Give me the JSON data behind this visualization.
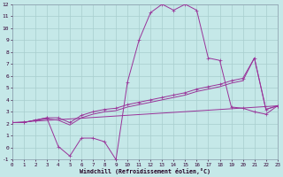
{
  "xlabel": "Windchill (Refroidissement éolien,°C)",
  "background_color": "#c5e8e8",
  "grid_color": "#a8cece",
  "line_color": "#993399",
  "xlim": [
    0,
    23
  ],
  "ylim": [
    -1,
    12
  ],
  "xticks": [
    0,
    1,
    2,
    3,
    4,
    5,
    6,
    7,
    8,
    9,
    10,
    11,
    12,
    13,
    14,
    15,
    16,
    17,
    18,
    19,
    20,
    21,
    22,
    23
  ],
  "yticks": [
    -1,
    0,
    1,
    2,
    3,
    4,
    5,
    6,
    7,
    8,
    9,
    10,
    11,
    12
  ],
  "curve1_x": [
    0,
    1,
    2,
    3,
    4,
    5,
    6,
    7,
    8,
    9,
    10,
    11,
    12,
    13,
    14,
    15,
    16,
    17,
    18,
    19,
    20,
    21,
    22,
    23
  ],
  "curve1_y": [
    2.1,
    2.1,
    2.3,
    2.5,
    0.1,
    -0.7,
    0.8,
    0.8,
    0.5,
    -1.0,
    5.5,
    9.0,
    11.3,
    12.0,
    11.5,
    12.0,
    11.5,
    7.5,
    7.3,
    3.4,
    3.3,
    3.0,
    2.8,
    3.5
  ],
  "curve2_x": [
    0,
    1,
    2,
    3,
    4,
    5,
    6,
    7,
    8,
    9,
    10,
    11,
    12,
    13,
    14,
    15,
    16,
    17,
    18,
    19,
    20,
    21,
    22,
    23
  ],
  "curve2_y": [
    2.1,
    2.1,
    2.3,
    2.5,
    2.5,
    2.1,
    2.7,
    3.0,
    3.2,
    3.3,
    3.6,
    3.8,
    4.0,
    4.2,
    4.4,
    4.6,
    4.9,
    5.1,
    5.3,
    5.6,
    5.8,
    7.5,
    3.2,
    3.5
  ],
  "curve3_x": [
    0,
    1,
    2,
    3,
    4,
    5,
    6,
    7,
    8,
    9,
    10,
    11,
    12,
    13,
    14,
    15,
    16,
    17,
    18,
    19,
    20,
    21,
    22,
    23
  ],
  "curve3_y": [
    2.1,
    2.1,
    2.3,
    2.4,
    2.3,
    1.9,
    2.5,
    2.8,
    3.0,
    3.1,
    3.4,
    3.6,
    3.8,
    4.0,
    4.2,
    4.4,
    4.7,
    4.9,
    5.1,
    5.4,
    5.6,
    7.5,
    3.2,
    3.5
  ],
  "line_x": [
    0,
    23
  ],
  "line_y": [
    2.1,
    3.5
  ]
}
